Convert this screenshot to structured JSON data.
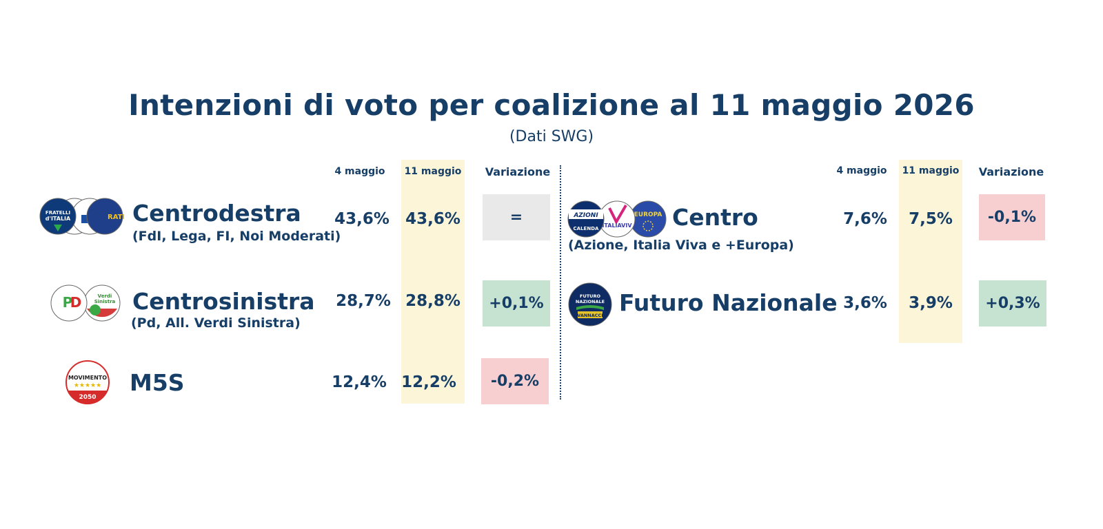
{
  "header": {
    "title": "Intenzioni di voto per coalizione al 11 maggio 2026",
    "subtitle": "(Dati SWG)"
  },
  "colors": {
    "text": "#163e66",
    "highlight_column": "#fdf5d8",
    "neutral": "#e9e9e9",
    "positive": "#c6e3d2",
    "negative": "#f8cfd1"
  },
  "chart_data": {
    "type": "table",
    "columns": [
      "4 maggio",
      "11 maggio",
      "Variazione"
    ],
    "left_panel": {
      "rows": [
        {
          "name": "Centrodestra",
          "detail": "(FdI, Lega, FI, Noi Moderati)",
          "may4": "43,6%",
          "may11": "43,6%",
          "change": "=",
          "trend": "neutral",
          "logos": [
            "fratelli-d-italia-logo",
            "lega-logo",
            "forza-italia-logo",
            "noi-moderati-logo"
          ]
        },
        {
          "name": "Centrosinistra",
          "detail": "(Pd, All. Verdi Sinistra)",
          "may4": "28,7%",
          "may11": "28,8%",
          "change": "+0,1%",
          "trend": "positive",
          "logos": [
            "pd-logo",
            "avs-logo"
          ]
        },
        {
          "name": "M5S",
          "detail": "",
          "may4": "12,4%",
          "may11": "12,2%",
          "change": "-0,2%",
          "trend": "negative",
          "logos": [
            "movimento-5-stelle-logo"
          ]
        }
      ]
    },
    "right_panel": {
      "rows": [
        {
          "name": "Centro",
          "detail": "(Azione, Italia Viva e +Europa)",
          "may4": "7,6%",
          "may11": "7,5%",
          "change": "-0,1%",
          "trend": "negative",
          "logos": [
            "azione-logo",
            "italia-viva-logo",
            "piu-europa-logo"
          ]
        },
        {
          "name": "Futuro Nazionale",
          "detail": "",
          "may4": "3,6%",
          "may11": "3,9%",
          "change": "+0,3%",
          "trend": "positive",
          "logos": [
            "futuro-nazionale-logo"
          ]
        }
      ]
    }
  },
  "logo_text": {
    "fdi": "FRATELLI d'ITALIA",
    "m5s_top": "MOVIMENTO",
    "m5s_bottom": "2050",
    "azione_top": "AZIONI",
    "azione_bottom": "CALENDA",
    "italia_viva": "ITALIAVIV",
    "europa": "EUROPA",
    "fn_top": "FUTURO NAZIONALE",
    "fn_bottom": "VANNACCI",
    "pd": "PD",
    "avs": "Verdi Sinistra"
  }
}
